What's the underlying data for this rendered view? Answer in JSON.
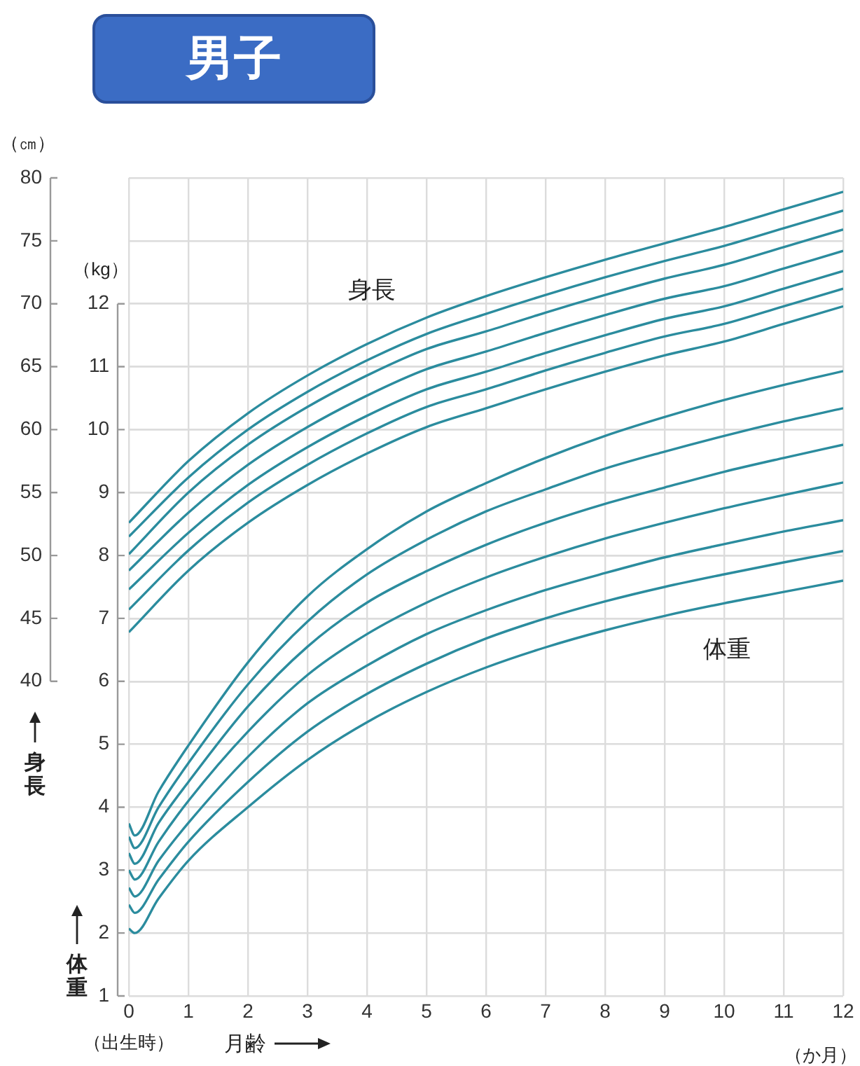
{
  "chart_data": {
    "type": "line",
    "title": "男子",
    "xlabel": "月齢",
    "ylabel": "身長",
    "y2label": "体重",
    "x": [
      0,
      1,
      2,
      3,
      4,
      5,
      6,
      7,
      8,
      9,
      10,
      11,
      12
    ],
    "xlim": [
      0,
      12
    ],
    "xticks": [
      0,
      1,
      2,
      3,
      4,
      5,
      6,
      7,
      8,
      9,
      10,
      11,
      12
    ],
    "ylim": [
      15,
      80
    ],
    "yticks": [
      40,
      45,
      50,
      55,
      60,
      65,
      70,
      75,
      80
    ],
    "y2lim": [
      1,
      14
    ],
    "y2ticks": [
      1,
      2,
      3,
      4,
      5,
      6,
      7,
      8,
      9,
      10,
      11,
      12
    ],
    "grid": true,
    "legend": false,
    "marker": "none",
    "line_style": "solid",
    "annotations": [
      "（㎝）",
      "（kg）",
      "（出生時）",
      "（か月）",
      "身長",
      "体重"
    ],
    "series": [
      {
        "color": "#2b8c9e",
        "values": [
          52.6,
          57.5,
          61.3,
          64.3,
          66.8,
          68.9,
          70.6,
          72.1,
          73.5,
          74.8,
          76.1,
          77.5,
          78.9
        ]
      },
      {
        "color": "#2b8c9e",
        "values": [
          51.5,
          56.2,
          60.0,
          63.0,
          65.5,
          67.6,
          69.2,
          70.7,
          72.1,
          73.4,
          74.6,
          76.0,
          77.4
        ]
      },
      {
        "color": "#2b8c9e",
        "values": [
          50.1,
          55.0,
          58.8,
          61.8,
          64.3,
          66.4,
          67.8,
          69.3,
          70.7,
          72.0,
          73.1,
          74.5,
          75.9
        ]
      },
      {
        "color": "#2b8c9e",
        "values": [
          48.8,
          53.4,
          57.2,
          60.2,
          62.7,
          64.8,
          66.2,
          67.7,
          69.1,
          70.4,
          71.4,
          72.8,
          74.2
        ]
      },
      {
        "color": "#2b8c9e",
        "values": [
          47.3,
          51.8,
          55.6,
          58.6,
          61.1,
          63.2,
          64.6,
          66.1,
          67.5,
          68.8,
          69.8,
          71.2,
          72.6
        ]
      },
      {
        "color": "#2b8c9e",
        "values": [
          45.7,
          50.4,
          54.2,
          57.2,
          59.7,
          61.8,
          63.2,
          64.7,
          66.1,
          67.4,
          68.4,
          69.8,
          71.2
        ]
      },
      {
        "color": "#2b8c9e",
        "values": [
          43.9,
          48.8,
          52.6,
          55.6,
          58.1,
          60.2,
          61.7,
          63.2,
          64.6,
          65.9,
          67.0,
          68.4,
          69.8
        ]
      },
      {
        "color": "#2b8c9e",
        "axis": "y2",
        "x": [
          0,
          0.1,
          0.5,
          1,
          2,
          3,
          4,
          5,
          6,
          7,
          8,
          9,
          10,
          11,
          12
        ],
        "values": [
          3.74,
          3.55,
          4.25,
          4.98,
          6.3,
          7.35,
          8.1,
          8.7,
          9.15,
          9.55,
          9.9,
          10.2,
          10.47,
          10.71,
          10.93
        ]
      },
      {
        "color": "#2b8c9e",
        "axis": "y2",
        "x": [
          0,
          0.1,
          0.5,
          1,
          2,
          3,
          4,
          5,
          6,
          7,
          8,
          9,
          10,
          11,
          12
        ],
        "values": [
          3.53,
          3.35,
          4.0,
          4.7,
          5.95,
          6.95,
          7.7,
          8.25,
          8.7,
          9.05,
          9.38,
          9.65,
          9.9,
          10.13,
          10.34
        ]
      },
      {
        "color": "#2b8c9e",
        "axis": "y2",
        "x": [
          0,
          0.1,
          0.5,
          1,
          2,
          3,
          4,
          5,
          6,
          7,
          8,
          9,
          10,
          11,
          12
        ],
        "values": [
          3.27,
          3.1,
          3.75,
          4.4,
          5.6,
          6.55,
          7.25,
          7.75,
          8.17,
          8.52,
          8.82,
          9.08,
          9.33,
          9.55,
          9.76
        ]
      },
      {
        "color": "#2b8c9e",
        "axis": "y2",
        "x": [
          0,
          0.1,
          0.5,
          1,
          2,
          3,
          4,
          5,
          6,
          7,
          8,
          9,
          10,
          11,
          12
        ],
        "values": [
          3.0,
          2.85,
          3.45,
          4.1,
          5.2,
          6.1,
          6.75,
          7.25,
          7.65,
          7.98,
          8.27,
          8.52,
          8.75,
          8.96,
          9.16
        ]
      },
      {
        "color": "#2b8c9e",
        "axis": "y2",
        "x": [
          0,
          0.1,
          0.5,
          1,
          2,
          3,
          4,
          5,
          6,
          7,
          8,
          9,
          10,
          11,
          12
        ],
        "values": [
          2.72,
          2.58,
          3.15,
          3.75,
          4.8,
          5.65,
          6.25,
          6.75,
          7.13,
          7.45,
          7.72,
          7.97,
          8.18,
          8.38,
          8.56
        ]
      },
      {
        "color": "#2b8c9e",
        "axis": "y2",
        "x": [
          0,
          0.1,
          0.5,
          1,
          2,
          3,
          4,
          5,
          6,
          7,
          8,
          9,
          10,
          11,
          12
        ],
        "values": [
          2.45,
          2.32,
          2.85,
          3.45,
          4.4,
          5.2,
          5.8,
          6.28,
          6.68,
          7.0,
          7.27,
          7.5,
          7.7,
          7.89,
          8.07
        ]
      },
      {
        "color": "#2b8c9e",
        "axis": "y2",
        "x": [
          0,
          0.1,
          0.5,
          1,
          2,
          3,
          4,
          5,
          6,
          7,
          8,
          9,
          10,
          11,
          12
        ],
        "values": [
          2.07,
          2.0,
          2.55,
          3.15,
          4.0,
          4.75,
          5.35,
          5.83,
          6.22,
          6.54,
          6.81,
          7.04,
          7.24,
          7.42,
          7.6
        ]
      }
    ]
  }
}
